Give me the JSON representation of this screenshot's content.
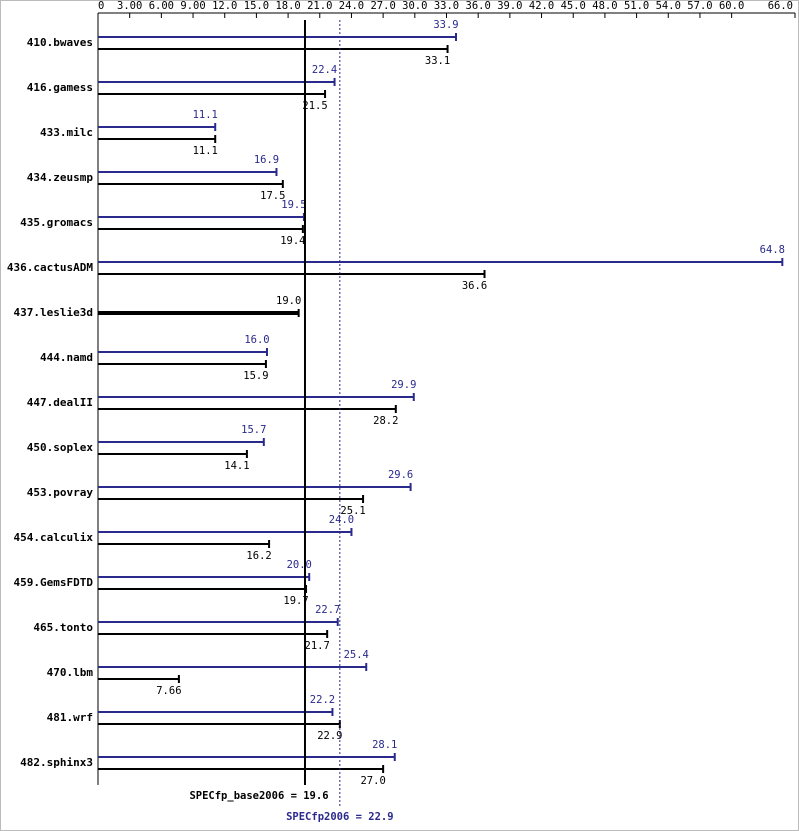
{
  "chart_data": {
    "type": "bar",
    "orientation": "horizontal",
    "categories": [
      "410.bwaves",
      "416.gamess",
      "433.milc",
      "434.zeusmp",
      "435.gromacs",
      "436.cactusADM",
      "437.leslie3d",
      "444.namd",
      "447.dealII",
      "450.soplex",
      "453.povray",
      "454.calculix",
      "459.GemsFDTD",
      "465.tonto",
      "470.lbm",
      "481.wrf",
      "482.sphinx3"
    ],
    "series": [
      {
        "color": "#2a2a8c",
        "values": [
          33.9,
          22.4,
          11.1,
          16.9,
          19.5,
          64.8,
          null,
          16.0,
          29.9,
          15.7,
          29.6,
          24.0,
          20.0,
          22.7,
          25.4,
          22.2,
          28.1
        ],
        "value_labels": [
          "33.9",
          "22.4",
          "11.1",
          "16.9",
          "19.5",
          "64.8",
          null,
          "16.0",
          "29.9",
          "15.7",
          "29.6",
          "24.0",
          "20.0",
          "22.7",
          "25.4",
          "22.2",
          "28.1"
        ]
      },
      {
        "color": "#000000",
        "values": [
          33.1,
          21.5,
          11.1,
          17.5,
          19.4,
          36.6,
          19.0,
          15.9,
          28.2,
          14.1,
          25.1,
          16.2,
          19.7,
          21.7,
          7.66,
          22.9,
          27.0
        ],
        "value_labels": [
          "33.1",
          "21.5",
          "11.1",
          "17.5",
          "19.4",
          "36.6",
          "19.0",
          "15.9",
          "28.2",
          "14.1",
          "25.1",
          "16.2",
          "19.7",
          "21.7",
          "7.66",
          "22.9",
          "27.0"
        ]
      }
    ],
    "xlim": [
      0,
      66
    ],
    "xticks": [
      0,
      {
        "value": 3,
        "label": "3.00"
      },
      {
        "value": 6,
        "label": "6.00"
      },
      {
        "value": 9,
        "label": "9.00"
      },
      {
        "value": 12,
        "label": "12.0"
      },
      {
        "value": 15,
        "label": "15.0"
      },
      {
        "value": 18,
        "label": "18.0"
      },
      {
        "value": 21,
        "label": "21.0"
      },
      {
        "value": 24,
        "label": "24.0"
      },
      {
        "value": 27,
        "label": "27.0"
      },
      {
        "value": 30,
        "label": "30.0"
      },
      {
        "value": 33,
        "label": "33.0"
      },
      {
        "value": 36,
        "label": "36.0"
      },
      {
        "value": 39,
        "label": "39.0"
      },
      {
        "value": 42,
        "label": "42.0"
      },
      {
        "value": 45,
        "label": "45.0"
      },
      {
        "value": 48,
        "label": "48.0"
      },
      {
        "value": 51,
        "label": "51.0"
      },
      {
        "value": 54,
        "label": "54.0"
      },
      {
        "value": 57,
        "label": "57.0"
      },
      {
        "value": 60,
        "label": "60.0"
      },
      {
        "value": 66,
        "label": "66.0"
      }
    ],
    "reference_lines": [
      {
        "label": "SPECfp_base2006 = 19.6",
        "value": 19.6,
        "color": "#000000",
        "style": "solid"
      },
      {
        "label": "SPECfp2006 = 22.9",
        "value": 22.9,
        "color": "#2a2a8c",
        "style": "dotted"
      }
    ]
  }
}
